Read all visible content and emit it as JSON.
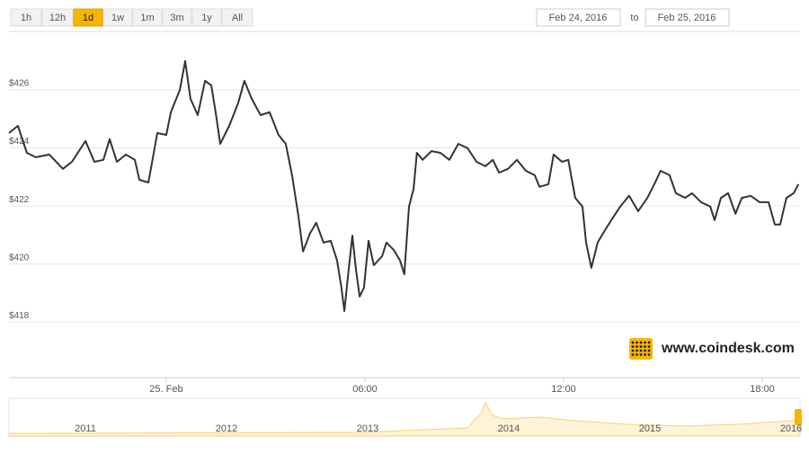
{
  "ui": {
    "ranges": [
      "1h",
      "12h",
      "1d",
      "1w",
      "1m",
      "3m",
      "1y",
      "All"
    ],
    "active_range": 2,
    "date_from": "Feb 24, 2016",
    "date_sep": "to",
    "date_to": "Feb 25, 2016",
    "watermark": "www.coindesk.com"
  },
  "navigator": {
    "years": [
      "2011",
      "2012",
      "2013",
      "2014",
      "2015",
      "2016"
    ]
  },
  "chart_data": {
    "type": "line",
    "color": "#333333",
    "grid": true,
    "x": [
      -4.75,
      -4.48,
      -4.21,
      -3.94,
      -3.53,
      -3.12,
      -2.85,
      -2.44,
      -2.17,
      -1.9,
      -1.71,
      -1.49,
      -1.22,
      -0.95,
      -0.81,
      -0.54,
      -0.27,
      0,
      0.14,
      0.41,
      0.57,
      0.73,
      0.95,
      1.17,
      1.36,
      1.49,
      1.63,
      1.9,
      2.17,
      2.36,
      2.58,
      2.85,
      3.12,
      3.39,
      3.61,
      3.8,
      3.99,
      4.13,
      4.34,
      4.53,
      4.75,
      4.97,
      5.16,
      5.29,
      5.38,
      5.51,
      5.62,
      5.73,
      5.84,
      5.97,
      6.11,
      6.27,
      6.52,
      6.65,
      6.87,
      7.06,
      7.19,
      7.33,
      7.47,
      7.57,
      7.74,
      8.01,
      8.28,
      8.55,
      8.82,
      9.1,
      9.37,
      9.64,
      9.86,
      10.05,
      10.32,
      10.59,
      10.86,
      11.13,
      11.27,
      11.54,
      11.7,
      11.95,
      12.14,
      12.35,
      12.57,
      12.68,
      12.84,
      13.03,
      13.22,
      13.44,
      13.71,
      13.98,
      14.25,
      14.53,
      14.74,
      14.93,
      15.2,
      15.39,
      15.67,
      15.88,
      16.15,
      16.43,
      16.56,
      16.75,
      16.97,
      17.19,
      17.38,
      17.65,
      17.92,
      18.19,
      18.38,
      18.54,
      18.73,
      18.95,
      19.09
    ],
    "values": [
      424.51,
      424.76,
      423.83,
      423.68,
      423.77,
      423.28,
      423.52,
      424.24,
      423.52,
      423.59,
      424.3,
      423.52,
      423.77,
      423.59,
      422.9,
      422.81,
      424.51,
      424.45,
      425.23,
      426,
      426.99,
      425.69,
      425.13,
      426.31,
      426.15,
      425.23,
      424.14,
      424.76,
      425.54,
      426.31,
      425.69,
      425.13,
      425.23,
      424.45,
      424.14,
      423.06,
      421.67,
      420.43,
      421.05,
      421.42,
      420.74,
      420.8,
      420.12,
      419.19,
      418.38,
      419.81,
      420.98,
      419.81,
      418.88,
      419.19,
      420.8,
      419.96,
      420.27,
      420.74,
      420.49,
      420.12,
      419.65,
      421.98,
      422.59,
      423.83,
      423.59,
      423.89,
      423.83,
      423.59,
      424.14,
      423.99,
      423.52,
      423.37,
      423.59,
      423.15,
      423.28,
      423.59,
      423.21,
      423.06,
      422.66,
      422.75,
      423.77,
      423.52,
      423.59,
      422.28,
      421.98,
      420.74,
      419.87,
      420.74,
      421.11,
      421.51,
      421.98,
      422.35,
      421.82,
      422.28,
      422.75,
      423.21,
      423.06,
      422.44,
      422.28,
      422.44,
      422.13,
      421.98,
      421.51,
      422.28,
      422.44,
      421.73,
      422.28,
      422.35,
      422.13,
      422.13,
      421.36,
      421.36,
      422.28,
      422.44,
      422.75
    ],
    "xlim": [
      -4.75,
      19.14
    ],
    "ylim": [
      416.09,
      428.01
    ],
    "xticks": [
      {
        "value": 0,
        "label": "25. Feb"
      },
      {
        "value": 6,
        "label": "06:00"
      },
      {
        "value": 12,
        "label": "12:00"
      },
      {
        "value": 18,
        "label": "18:00"
      }
    ],
    "yticks": [
      {
        "value": 418,
        "label": "$418"
      },
      {
        "value": 420,
        "label": "$420"
      },
      {
        "value": 422,
        "label": "$422"
      },
      {
        "value": 424,
        "label": "$424"
      },
      {
        "value": 426,
        "label": "$426"
      }
    ]
  }
}
